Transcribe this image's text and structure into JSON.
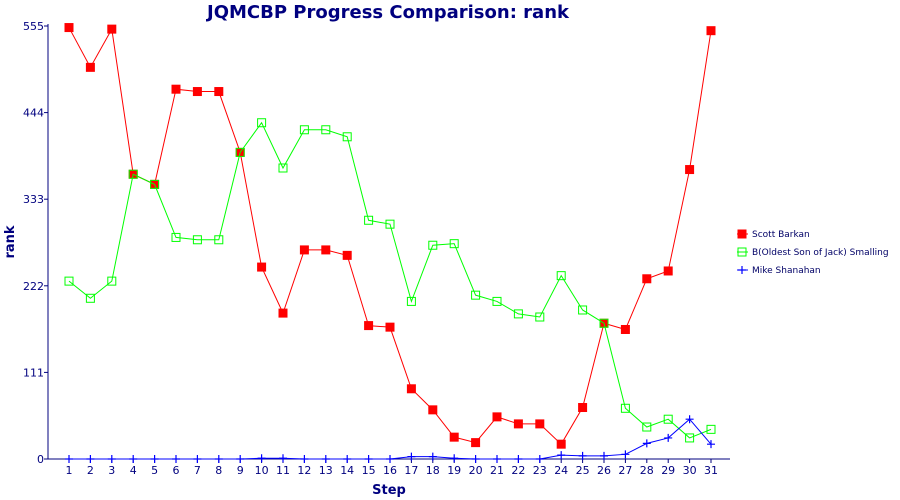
{
  "chart_data": {
    "type": "line",
    "title": "JQMCBP Progress Comparison: rank",
    "xlabel": "Step",
    "ylabel": "rank",
    "x": [
      1,
      2,
      3,
      4,
      5,
      6,
      7,
      8,
      9,
      10,
      11,
      12,
      13,
      14,
      15,
      16,
      17,
      18,
      19,
      20,
      21,
      22,
      23,
      24,
      25,
      26,
      27,
      28,
      29,
      30,
      31
    ],
    "y_ticks": [
      0,
      111,
      222,
      333,
      444,
      555
    ],
    "ylim": [
      0,
      555
    ],
    "grid": false,
    "legend_position": "right",
    "series": [
      {
        "name": "Scott Barkan",
        "color": "#ff0000",
        "marker": "filled-square",
        "values": [
          553,
          502,
          551,
          365,
          352,
          474,
          471,
          471,
          393,
          246,
          187,
          268,
          268,
          261,
          171,
          169,
          90,
          63,
          28,
          21,
          54,
          45,
          45,
          19,
          66,
          174,
          166,
          231,
          241,
          371,
          549
        ]
      },
      {
        "name": "B(Oldest Son of Jack) Smalling",
        "color": "#00ff00",
        "marker": "open-square",
        "values": [
          228,
          206,
          228,
          365,
          352,
          284,
          281,
          281,
          393,
          431,
          373,
          422,
          422,
          413,
          306,
          301,
          202,
          274,
          276,
          210,
          202,
          186,
          182,
          235,
          191,
          174,
          65,
          41,
          51,
          27,
          38
        ]
      },
      {
        "name": "Mike Shanahan",
        "color": "#0000ff",
        "marker": "plus",
        "values": [
          0,
          0,
          0,
          0,
          0,
          0,
          0,
          0,
          0,
          1,
          1,
          0,
          0,
          0,
          0,
          0,
          3,
          3,
          1,
          0,
          0,
          0,
          0,
          5,
          4,
          4,
          6,
          20,
          27,
          51,
          19
        ]
      }
    ]
  }
}
